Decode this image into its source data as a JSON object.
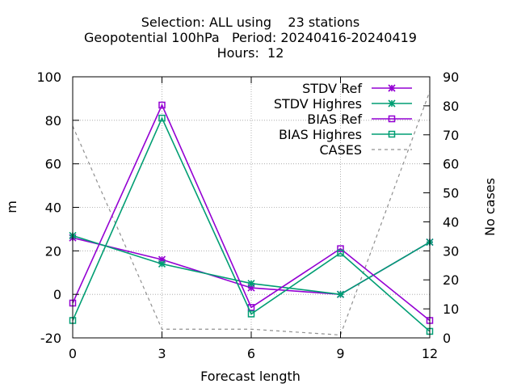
{
  "chart_data": {
    "type": "line",
    "title_lines": [
      "Selection: ALL using    23 stations",
      "Geopotential 100hPa   Period: 20240416-20240419",
      "Hours:  12"
    ],
    "xlabel": "Forecast length",
    "ylabel": "m",
    "y2label": "No cases",
    "x": [
      0,
      3,
      6,
      9,
      12
    ],
    "xlim": [
      0,
      12
    ],
    "ylim": [
      -20,
      100
    ],
    "y2lim": [
      0,
      90
    ],
    "xticks": [
      0,
      3,
      6,
      9,
      12
    ],
    "yticks": [
      -20,
      0,
      20,
      40,
      60,
      80,
      100
    ],
    "y2ticks": [
      0,
      10,
      20,
      30,
      40,
      50,
      60,
      70,
      80,
      90
    ],
    "grid": true,
    "legend_position": "top-right",
    "series": [
      {
        "name": "STDV Ref",
        "axis": "y1",
        "marker": "x",
        "color": "#9400d3",
        "dash": false,
        "values": [
          26,
          16,
          3,
          0,
          24
        ]
      },
      {
        "name": "STDV Highres",
        "axis": "y1",
        "marker": "x",
        "color": "#009e73",
        "dash": false,
        "values": [
          27,
          14,
          5,
          0,
          24
        ]
      },
      {
        "name": "BIAS Ref",
        "axis": "y1",
        "marker": "square",
        "color": "#9400d3",
        "dash": false,
        "values": [
          -4,
          87,
          -6,
          21,
          -12
        ]
      },
      {
        "name": "BIAS Highres",
        "axis": "y1",
        "marker": "square",
        "color": "#009e73",
        "dash": false,
        "values": [
          -12,
          81,
          -9,
          19,
          -17
        ]
      },
      {
        "name": "CASES",
        "axis": "y2",
        "marker": "none",
        "color": "#909090",
        "dash": true,
        "values": [
          73,
          3,
          3,
          1,
          85
        ]
      }
    ]
  }
}
